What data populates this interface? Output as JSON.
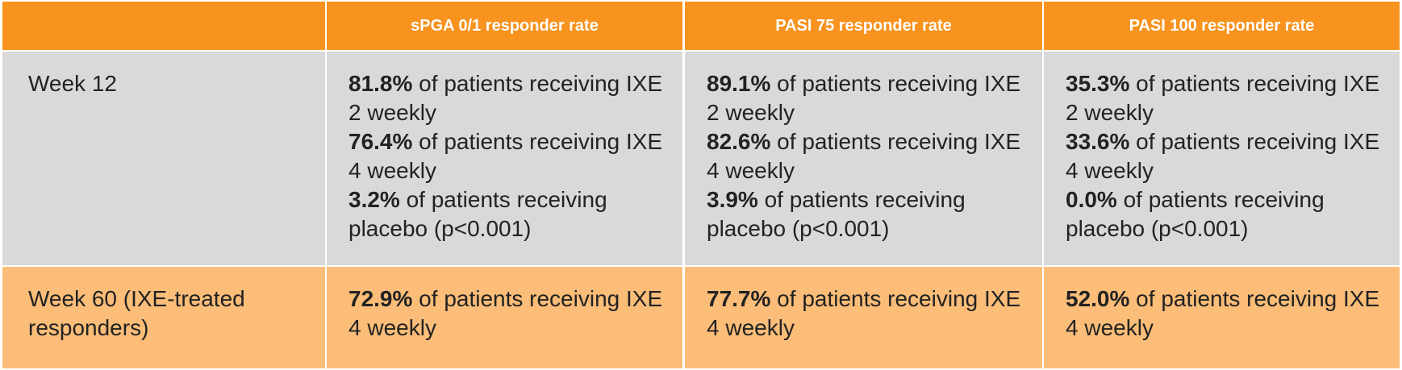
{
  "header": {
    "corner": "",
    "col1": "sPGA 0/1 responder rate",
    "col2": "PASI 75 responder rate",
    "col3": "PASI 100 responder rate"
  },
  "rows": [
    {
      "label": "Week 12",
      "cells": [
        [
          {
            "pct": "81.8%",
            "text": " of patients receiving IXE 2 weekly"
          },
          {
            "pct": "76.4%",
            "text": " of patients receiving IXE 4 weekly"
          },
          {
            "pct": "3.2%",
            "text": " of patients receiving placebo (p<0.001)"
          }
        ],
        [
          {
            "pct": "89.1%",
            "text": " of patients receiving IXE 2 weekly"
          },
          {
            "pct": "82.6%",
            "text": " of patients receiving IXE 4 weekly"
          },
          {
            "pct": "3.9%",
            "text": " of patients receiving placebo (p<0.001)"
          }
        ],
        [
          {
            "pct": "35.3%",
            "text": " of patients receiving IXE 2 weekly"
          },
          {
            "pct": "33.6%",
            "text": " of patients receiving IXE 4 weekly"
          },
          {
            "pct": "0.0%",
            "text": " of patients receiving placebo (p<0.001)"
          }
        ]
      ]
    },
    {
      "label": "Week 60 (IXE-treated responders)",
      "cells": [
        [
          {
            "pct": "72.9%",
            "text": " of patients receiving IXE 4 weekly"
          }
        ],
        [
          {
            "pct": "77.7%",
            "text": " of patients receiving IXE 4 weekly"
          }
        ],
        [
          {
            "pct": "52.0%",
            "text": " of patients receiving IXE 4 weekly"
          }
        ]
      ]
    }
  ],
  "colors": {
    "header_bg": "#f7931e",
    "row1_bg": "#d9d9d9",
    "row2_bg": "#fbbd78",
    "header_text": "#ffffff",
    "body_text": "#222222"
  }
}
